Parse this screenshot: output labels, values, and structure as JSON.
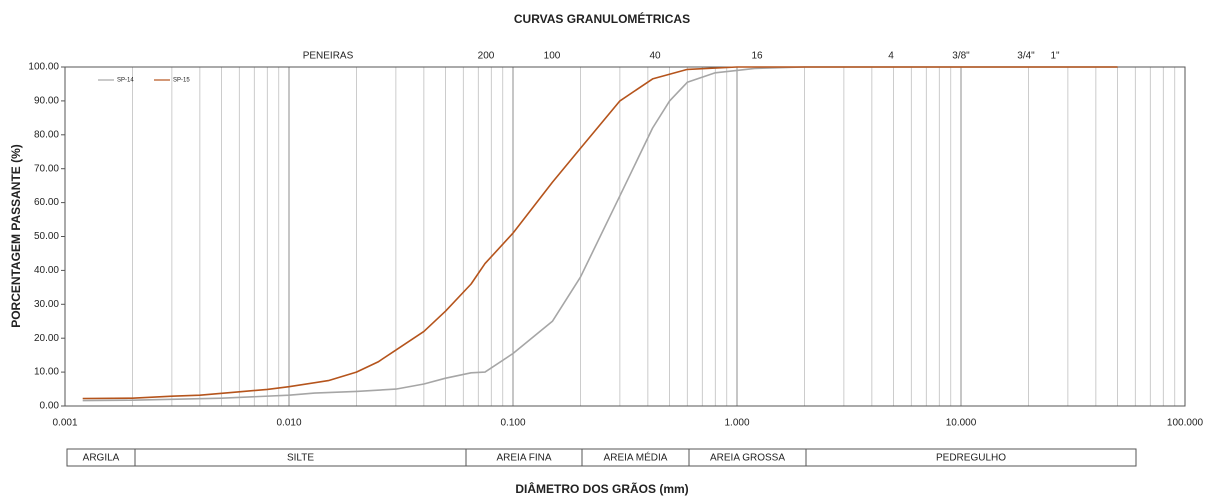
{
  "chart_data": {
    "type": "line",
    "title": "CURVAS GRANULOMÉTRICAS",
    "xlabel": "DIÂMETRO DOS GRÃOS (mm)",
    "ylabel": "PORCENTAGEM PASSANTE (%)",
    "xscale": "log",
    "grid": true,
    "legend": "upper left",
    "xlim": [
      0.001,
      100
    ],
    "ylim": [
      0,
      100
    ],
    "xticks": [
      {
        "value": 0.001,
        "label": "0.001"
      },
      {
        "value": 0.01,
        "label": "0.010"
      },
      {
        "value": 0.1,
        "label": "0.100"
      },
      {
        "value": 1,
        "label": "1.000"
      },
      {
        "value": 10,
        "label": "10.000"
      },
      {
        "value": 100,
        "label": "100.000"
      }
    ],
    "yticks": [
      {
        "value": 0,
        "label": "0.00"
      },
      {
        "value": 10,
        "label": "10.00"
      },
      {
        "value": 20,
        "label": "20.00"
      },
      {
        "value": 30,
        "label": "30.00"
      },
      {
        "value": 40,
        "label": "40.00"
      },
      {
        "value": 50,
        "label": "50.00"
      },
      {
        "value": 60,
        "label": "60.00"
      },
      {
        "value": 70,
        "label": "70.00"
      },
      {
        "value": 80,
        "label": "80.00"
      },
      {
        "value": 90,
        "label": "90.00"
      },
      {
        "value": 100,
        "label": "100.00"
      }
    ],
    "sieve_labels": [
      "PENEIRAS",
      "200",
      "100",
      "40",
      "16",
      "4",
      "3/8\"",
      "3/4\"",
      "1\""
    ],
    "soil_classes": [
      "ARGILA",
      "SILTE",
      "AREIA FINA",
      "AREIA MÉDIA",
      "AREIA GROSSA",
      "PEDREGULHO"
    ],
    "series": [
      {
        "name": "SP-14",
        "color": "#a6a6a6",
        "x": [
          0.0012,
          0.002,
          0.005,
          0.01,
          0.013,
          0.02,
          0.03,
          0.04,
          0.05,
          0.065,
          0.075,
          0.1,
          0.15,
          0.2,
          0.3,
          0.42,
          0.5,
          0.6,
          0.8,
          1,
          1.2,
          2,
          50
        ],
        "values": [
          1.6,
          1.7,
          2.3,
          3.2,
          3.8,
          4.3,
          5.0,
          6.5,
          8.2,
          9.8,
          10,
          15.5,
          25,
          38,
          62,
          82,
          90,
          95.5,
          98.3,
          99,
          99.6,
          100,
          100
        ]
      },
      {
        "name": "SP-15",
        "color": "#b5541c",
        "x": [
          0.0012,
          0.002,
          0.003,
          0.004,
          0.006,
          0.008,
          0.01,
          0.015,
          0.02,
          0.025,
          0.03,
          0.04,
          0.05,
          0.065,
          0.075,
          0.1,
          0.15,
          0.2,
          0.3,
          0.42,
          0.6,
          1,
          50
        ],
        "values": [
          2.2,
          2.3,
          2.9,
          3.2,
          4.2,
          4.9,
          5.7,
          7.5,
          10,
          13,
          16.5,
          22,
          28,
          36,
          42,
          51,
          66,
          76,
          90,
          96.5,
          99.3,
          100,
          100
        ]
      }
    ]
  }
}
